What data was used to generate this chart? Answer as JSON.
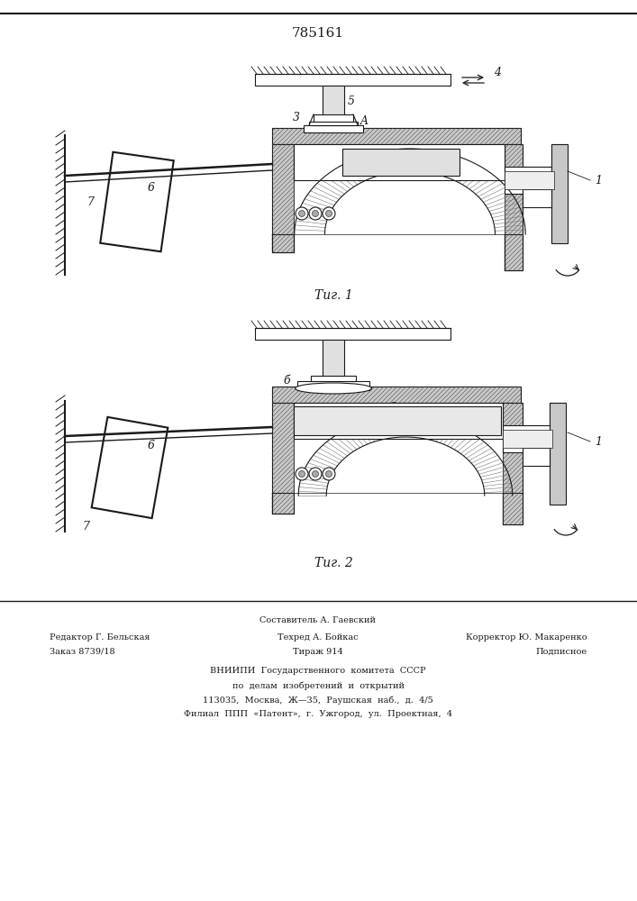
{
  "patent_number": "785161",
  "fig1_caption": "Τиг. 1",
  "fig2_caption": "Τиг. 2",
  "footer_line1_left": "Редактор Г. Бельская",
  "footer_line1_center": "Техред А. Бойкас",
  "footer_line1_right": "Корректор Ю. Макаренко",
  "footer_line2_left": "Заказ 8739/18",
  "footer_line2_center": "Тираж 914",
  "footer_line2_right": "Подписное",
  "footer_line0_center": "Составитель А. Гаевский",
  "footer_vniip1": "ВНИИПИ  Государственного  комитета  СССР",
  "footer_vniip2": "по  делам  изобретений  и  открытий",
  "footer_vniip3": "113035,  Москва,  Ж—35,  Раушская  наб.,  д.  4/5",
  "footer_vniip4": "Филиал  ППП  «Патент»,  г.  Ужгород,  ул.  Проектная,  4",
  "bg_color": "#ffffff",
  "line_color": "#1a1a1a",
  "hatch_color": "#333333",
  "label_fontsize": 9,
  "caption_fontsize": 10,
  "title_fontsize": 11
}
